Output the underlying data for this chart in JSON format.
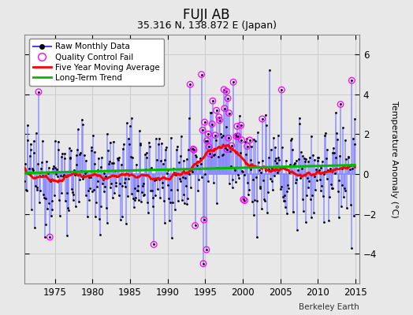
{
  "title": "FUJI AB",
  "subtitle": "35.316 N, 138.872 E (Japan)",
  "ylabel": "Temperature Anomaly (°C)",
  "watermark": "Berkeley Earth",
  "ylim": [
    -5.5,
    7.0
  ],
  "xlim": [
    1971.0,
    2015.5
  ],
  "yticks": [
    -4,
    -2,
    0,
    2,
    4,
    6
  ],
  "xticks": [
    1975,
    1980,
    1985,
    1990,
    1995,
    2000,
    2005,
    2010,
    2015
  ],
  "bg_color": "#e8e8e8",
  "line_color": "#4444ff",
  "stem_color": "#8888ff",
  "ma_color": "#ff0000",
  "trend_color": "#00bb00",
  "qc_color": "#ff00ff",
  "seed": 12345,
  "n_months": 528,
  "start_year": 1971.0
}
